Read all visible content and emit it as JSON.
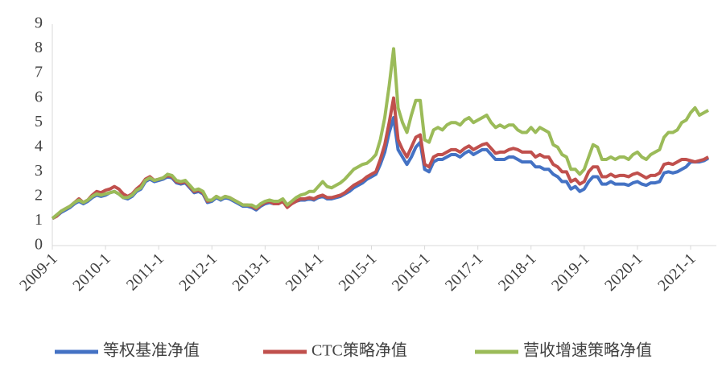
{
  "chart_data": {
    "type": "line",
    "x": [
      "2009-1",
      "2009-2",
      "2009-3",
      "2009-4",
      "2009-5",
      "2009-6",
      "2009-7",
      "2009-8",
      "2009-9",
      "2009-10",
      "2009-11",
      "2009-12",
      "2010-1",
      "2010-2",
      "2010-3",
      "2010-4",
      "2010-5",
      "2010-6",
      "2010-7",
      "2010-8",
      "2010-9",
      "2010-10",
      "2010-11",
      "2010-12",
      "2011-1",
      "2011-2",
      "2011-3",
      "2011-4",
      "2011-5",
      "2011-6",
      "2011-7",
      "2011-8",
      "2011-9",
      "2011-10",
      "2011-11",
      "2011-12",
      "2012-1",
      "2012-2",
      "2012-3",
      "2012-4",
      "2012-5",
      "2012-6",
      "2012-7",
      "2012-8",
      "2012-9",
      "2012-10",
      "2012-11",
      "2012-12",
      "2013-1",
      "2013-2",
      "2013-3",
      "2013-4",
      "2013-5",
      "2013-6",
      "2013-7",
      "2013-8",
      "2013-9",
      "2013-10",
      "2013-11",
      "2013-12",
      "2014-1",
      "2014-2",
      "2014-3",
      "2014-4",
      "2014-5",
      "2014-6",
      "2014-7",
      "2014-8",
      "2014-9",
      "2014-10",
      "2014-11",
      "2014-12",
      "2015-1",
      "2015-2",
      "2015-3",
      "2015-4",
      "2015-5",
      "2015-6",
      "2015-7",
      "2015-8",
      "2015-9",
      "2015-10",
      "2015-11",
      "2015-12",
      "2016-1",
      "2016-2",
      "2016-3",
      "2016-4",
      "2016-5",
      "2016-6",
      "2016-7",
      "2016-8",
      "2016-9",
      "2016-10",
      "2016-11",
      "2016-12",
      "2017-1",
      "2017-2",
      "2017-3",
      "2017-4",
      "2017-5",
      "2017-6",
      "2017-7",
      "2017-8",
      "2017-9",
      "2017-10",
      "2017-11",
      "2017-12",
      "2018-1",
      "2018-2",
      "2018-3",
      "2018-4",
      "2018-5",
      "2018-6",
      "2018-7",
      "2018-8",
      "2018-9",
      "2018-10",
      "2018-11",
      "2018-12",
      "2019-1",
      "2019-2",
      "2019-3",
      "2019-4",
      "2019-5",
      "2019-6",
      "2019-7",
      "2019-8",
      "2019-9",
      "2019-10",
      "2019-11",
      "2019-12",
      "2020-1",
      "2020-2",
      "2020-3",
      "2020-4",
      "2020-5",
      "2020-6",
      "2020-7",
      "2020-8",
      "2020-9",
      "2020-10",
      "2020-11",
      "2020-12",
      "2021-1",
      "2021-2",
      "2021-3",
      "2021-4",
      "2021-5"
    ],
    "xticks": [
      "2009-1",
      "2010-1",
      "2011-1",
      "2012-1",
      "2013-1",
      "2014-1",
      "2015-1",
      "2016-1",
      "2017-1",
      "2018-1",
      "2019-1",
      "2020-1",
      "2021-1"
    ],
    "ylim": [
      0,
      9
    ],
    "yticks": [
      0,
      1,
      2,
      3,
      4,
      5,
      6,
      7,
      8,
      9
    ],
    "grid": false,
    "legend": "bottom",
    "series": [
      {
        "name": "等权基准净值",
        "color": "#4472c4",
        "values": [
          1.1,
          1.2,
          1.35,
          1.45,
          1.55,
          1.7,
          1.8,
          1.7,
          1.8,
          1.95,
          2.05,
          2.0,
          2.05,
          2.15,
          2.2,
          2.1,
          1.95,
          1.9,
          2.0,
          2.2,
          2.3,
          2.6,
          2.7,
          2.6,
          2.65,
          2.7,
          2.8,
          2.75,
          2.55,
          2.5,
          2.55,
          2.35,
          2.15,
          2.2,
          2.1,
          1.75,
          1.8,
          1.95,
          1.85,
          1.95,
          1.9,
          1.8,
          1.7,
          1.6,
          1.6,
          1.55,
          1.45,
          1.6,
          1.7,
          1.75,
          1.7,
          1.7,
          1.8,
          1.6,
          1.7,
          1.8,
          1.85,
          1.85,
          1.9,
          1.85,
          1.95,
          2.0,
          1.9,
          1.9,
          1.95,
          2.0,
          2.1,
          2.2,
          2.35,
          2.45,
          2.55,
          2.7,
          2.8,
          2.9,
          3.3,
          3.8,
          4.6,
          5.2,
          3.9,
          3.6,
          3.3,
          3.6,
          4.0,
          4.2,
          3.1,
          3.0,
          3.4,
          3.5,
          3.5,
          3.6,
          3.7,
          3.7,
          3.6,
          3.75,
          3.85,
          3.7,
          3.8,
          3.9,
          3.9,
          3.7,
          3.5,
          3.5,
          3.5,
          3.6,
          3.6,
          3.5,
          3.4,
          3.4,
          3.4,
          3.2,
          3.2,
          3.1,
          3.1,
          2.9,
          2.8,
          2.6,
          2.6,
          2.3,
          2.4,
          2.2,
          2.3,
          2.6,
          2.8,
          2.8,
          2.5,
          2.5,
          2.6,
          2.5,
          2.5,
          2.5,
          2.45,
          2.55,
          2.6,
          2.5,
          2.45,
          2.55,
          2.55,
          2.6,
          2.95,
          3.0,
          2.95,
          3.0,
          3.1,
          3.2,
          3.4,
          3.4,
          3.4,
          3.45,
          3.55
        ]
      },
      {
        "name": "CTC策略净值",
        "color": "#c0504d",
        "values": [
          1.1,
          1.2,
          1.4,
          1.5,
          1.6,
          1.75,
          1.9,
          1.75,
          1.85,
          2.05,
          2.2,
          2.15,
          2.25,
          2.3,
          2.4,
          2.3,
          2.1,
          2.0,
          2.1,
          2.3,
          2.45,
          2.7,
          2.8,
          2.65,
          2.7,
          2.75,
          2.85,
          2.8,
          2.6,
          2.55,
          2.6,
          2.4,
          2.2,
          2.25,
          2.15,
          1.8,
          1.85,
          2.0,
          1.9,
          2.0,
          1.95,
          1.85,
          1.75,
          1.65,
          1.65,
          1.6,
          1.5,
          1.65,
          1.75,
          1.8,
          1.7,
          1.7,
          1.8,
          1.55,
          1.7,
          1.8,
          1.9,
          1.9,
          1.95,
          1.9,
          2.0,
          2.05,
          1.95,
          1.95,
          2.0,
          2.05,
          2.15,
          2.3,
          2.45,
          2.55,
          2.65,
          2.8,
          2.9,
          3.0,
          3.5,
          4.1,
          5.0,
          6.0,
          4.3,
          3.9,
          3.6,
          4.0,
          4.4,
          4.5,
          3.3,
          3.2,
          3.6,
          3.7,
          3.7,
          3.8,
          3.9,
          3.9,
          3.8,
          3.95,
          4.05,
          3.9,
          4.0,
          4.1,
          4.15,
          3.95,
          3.75,
          3.8,
          3.8,
          3.9,
          3.95,
          3.9,
          3.8,
          3.8,
          3.8,
          3.6,
          3.7,
          3.6,
          3.6,
          3.3,
          3.2,
          3.0,
          3.0,
          2.6,
          2.7,
          2.5,
          2.6,
          3.0,
          3.2,
          3.2,
          2.8,
          2.8,
          2.9,
          2.8,
          2.85,
          2.85,
          2.8,
          2.9,
          2.95,
          2.85,
          2.75,
          2.85,
          2.85,
          2.95,
          3.3,
          3.35,
          3.3,
          3.4,
          3.5,
          3.5,
          3.45,
          3.4,
          3.45,
          3.5,
          3.6
        ]
      },
      {
        "name": "营收增速策略净值",
        "color": "#9bbb59",
        "values": [
          1.1,
          1.25,
          1.4,
          1.5,
          1.6,
          1.75,
          1.85,
          1.75,
          1.85,
          2.0,
          2.1,
          2.05,
          2.1,
          2.15,
          2.2,
          2.1,
          1.95,
          1.95,
          2.05,
          2.25,
          2.35,
          2.65,
          2.75,
          2.65,
          2.7,
          2.75,
          2.9,
          2.85,
          2.65,
          2.6,
          2.65,
          2.45,
          2.25,
          2.3,
          2.2,
          1.85,
          1.85,
          2.0,
          1.9,
          2.0,
          1.95,
          1.85,
          1.75,
          1.65,
          1.65,
          1.65,
          1.55,
          1.7,
          1.8,
          1.85,
          1.8,
          1.8,
          1.9,
          1.65,
          1.8,
          1.95,
          2.05,
          2.1,
          2.2,
          2.2,
          2.4,
          2.6,
          2.4,
          2.35,
          2.45,
          2.55,
          2.7,
          2.9,
          3.1,
          3.2,
          3.3,
          3.35,
          3.5,
          3.7,
          4.3,
          5.2,
          6.5,
          8.0,
          5.6,
          5.0,
          4.6,
          5.3,
          5.9,
          5.9,
          4.3,
          4.2,
          4.7,
          4.8,
          4.7,
          4.9,
          5.0,
          5.0,
          4.9,
          5.1,
          5.2,
          5.0,
          5.1,
          5.2,
          5.3,
          5.0,
          4.8,
          4.9,
          4.8,
          4.9,
          4.9,
          4.7,
          4.6,
          4.6,
          4.8,
          4.6,
          4.8,
          4.7,
          4.6,
          4.1,
          4.0,
          3.7,
          3.6,
          3.1,
          3.1,
          2.9,
          3.1,
          3.6,
          4.1,
          4.0,
          3.5,
          3.5,
          3.6,
          3.5,
          3.6,
          3.6,
          3.5,
          3.7,
          3.8,
          3.6,
          3.5,
          3.7,
          3.8,
          3.9,
          4.4,
          4.6,
          4.6,
          4.7,
          5.0,
          5.1,
          5.4,
          5.6,
          5.3,
          5.4,
          5.5
        ]
      }
    ]
  }
}
